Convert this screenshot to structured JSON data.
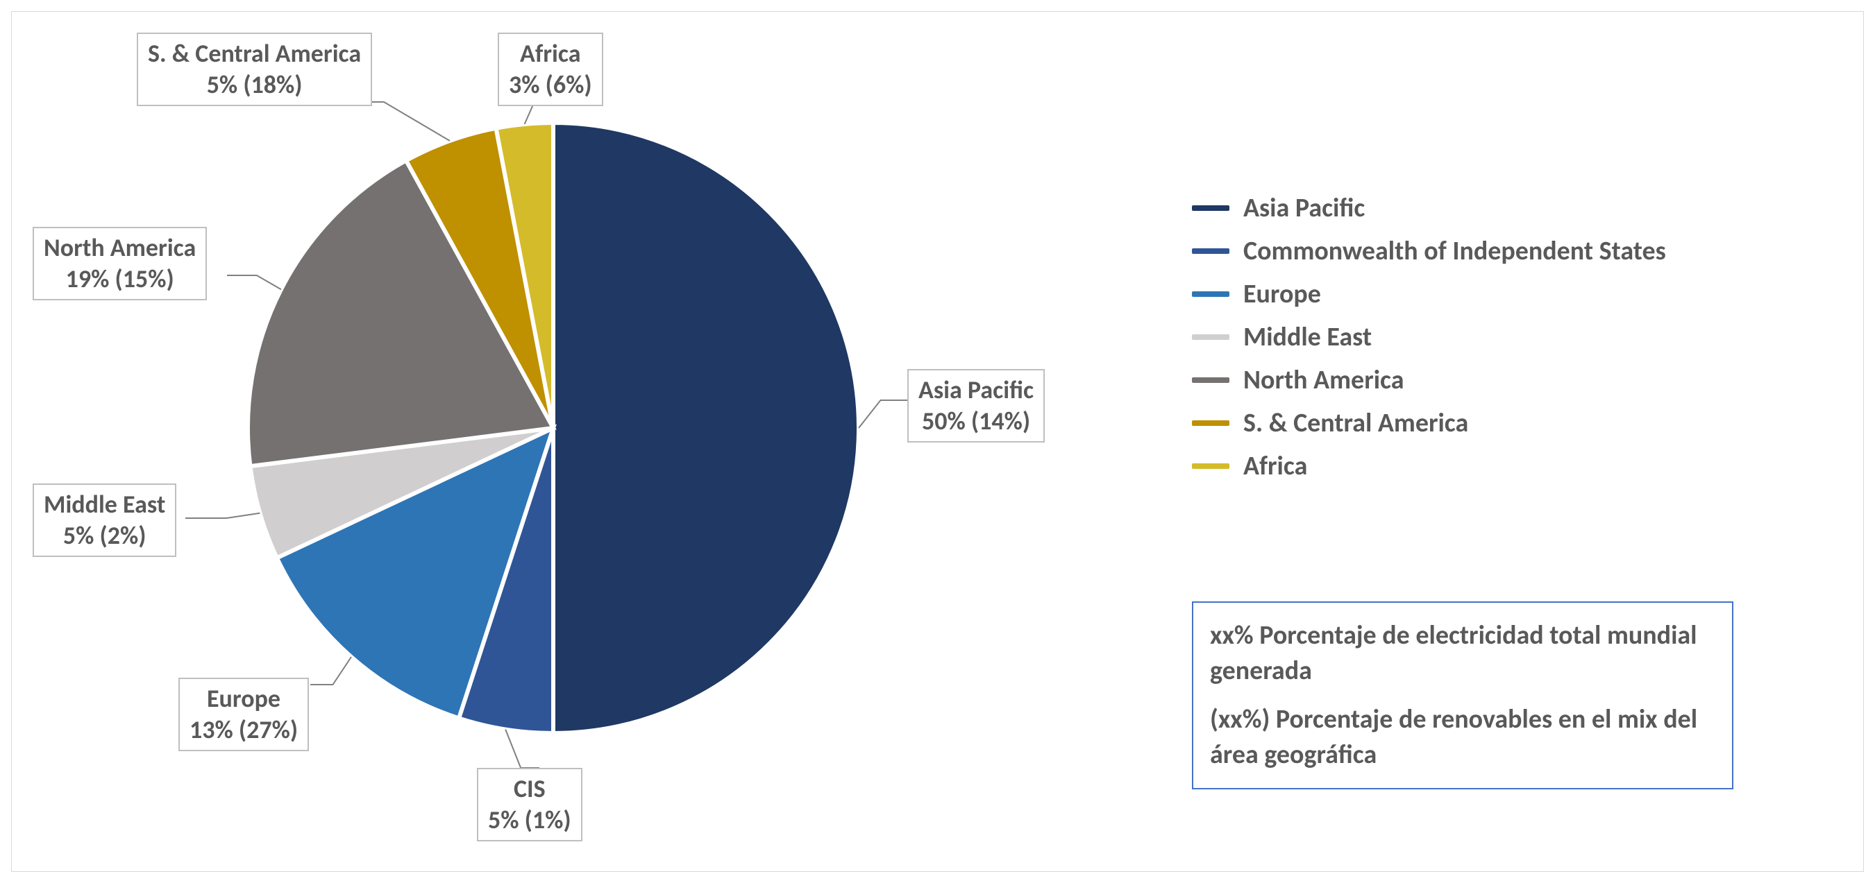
{
  "chart": {
    "type": "pie",
    "background_color": "#ffffff",
    "border_color": "#d9d9d9",
    "label_border_color": "#bfbfbf",
    "label_text_color": "#595959",
    "label_fontsize": 36,
    "legend_text_color": "#595959",
    "legend_fontsize": 38,
    "note_border_color": "#4472c4",
    "slice_border_color": "#ffffff",
    "slice_border_width": 6,
    "series": [
      {
        "key": "asia_pacific",
        "legend": "Asia Pacific",
        "value": 50,
        "secondary": 14,
        "color": "#1f3864",
        "label_line1": "Asia Pacific",
        "label_line2": "50% (14%)"
      },
      {
        "key": "cis",
        "legend": "Commonwealth of Independent States",
        "value": 5,
        "secondary": 1,
        "color": "#2f5597",
        "label_line1": "CIS",
        "label_line2": "5% (1%)"
      },
      {
        "key": "europe",
        "legend": "Europe",
        "value": 13,
        "secondary": 27,
        "color": "#2e75b6",
        "label_line1": "Europe",
        "label_line2": "13% (27%)"
      },
      {
        "key": "middle_east",
        "legend": "Middle East",
        "value": 5,
        "secondary": 2,
        "color": "#d0cece",
        "label_line1": "Middle East",
        "label_line2": "5% (2%)"
      },
      {
        "key": "north_america",
        "legend": "North America",
        "value": 19,
        "secondary": 15,
        "color": "#767171",
        "label_line1": "North America",
        "label_line2": "19% (15%)"
      },
      {
        "key": "s_central_america",
        "legend": "S. & Central America",
        "value": 5,
        "secondary": 18,
        "color": "#bf9000",
        "label_line1": "S. & Central America",
        "label_line2": "5% (18%)"
      },
      {
        "key": "africa",
        "legend": "Africa",
        "value": 3,
        "secondary": 6,
        "color": "#d4bb2a",
        "label_line1": "Africa",
        "label_line2": "3% (6%)"
      }
    ],
    "note_line1": "xx% Porcentaje de electricidad total mundial generada",
    "note_line2": "(xx%) Porcentaje de renovables en el mix del área geográfica"
  }
}
